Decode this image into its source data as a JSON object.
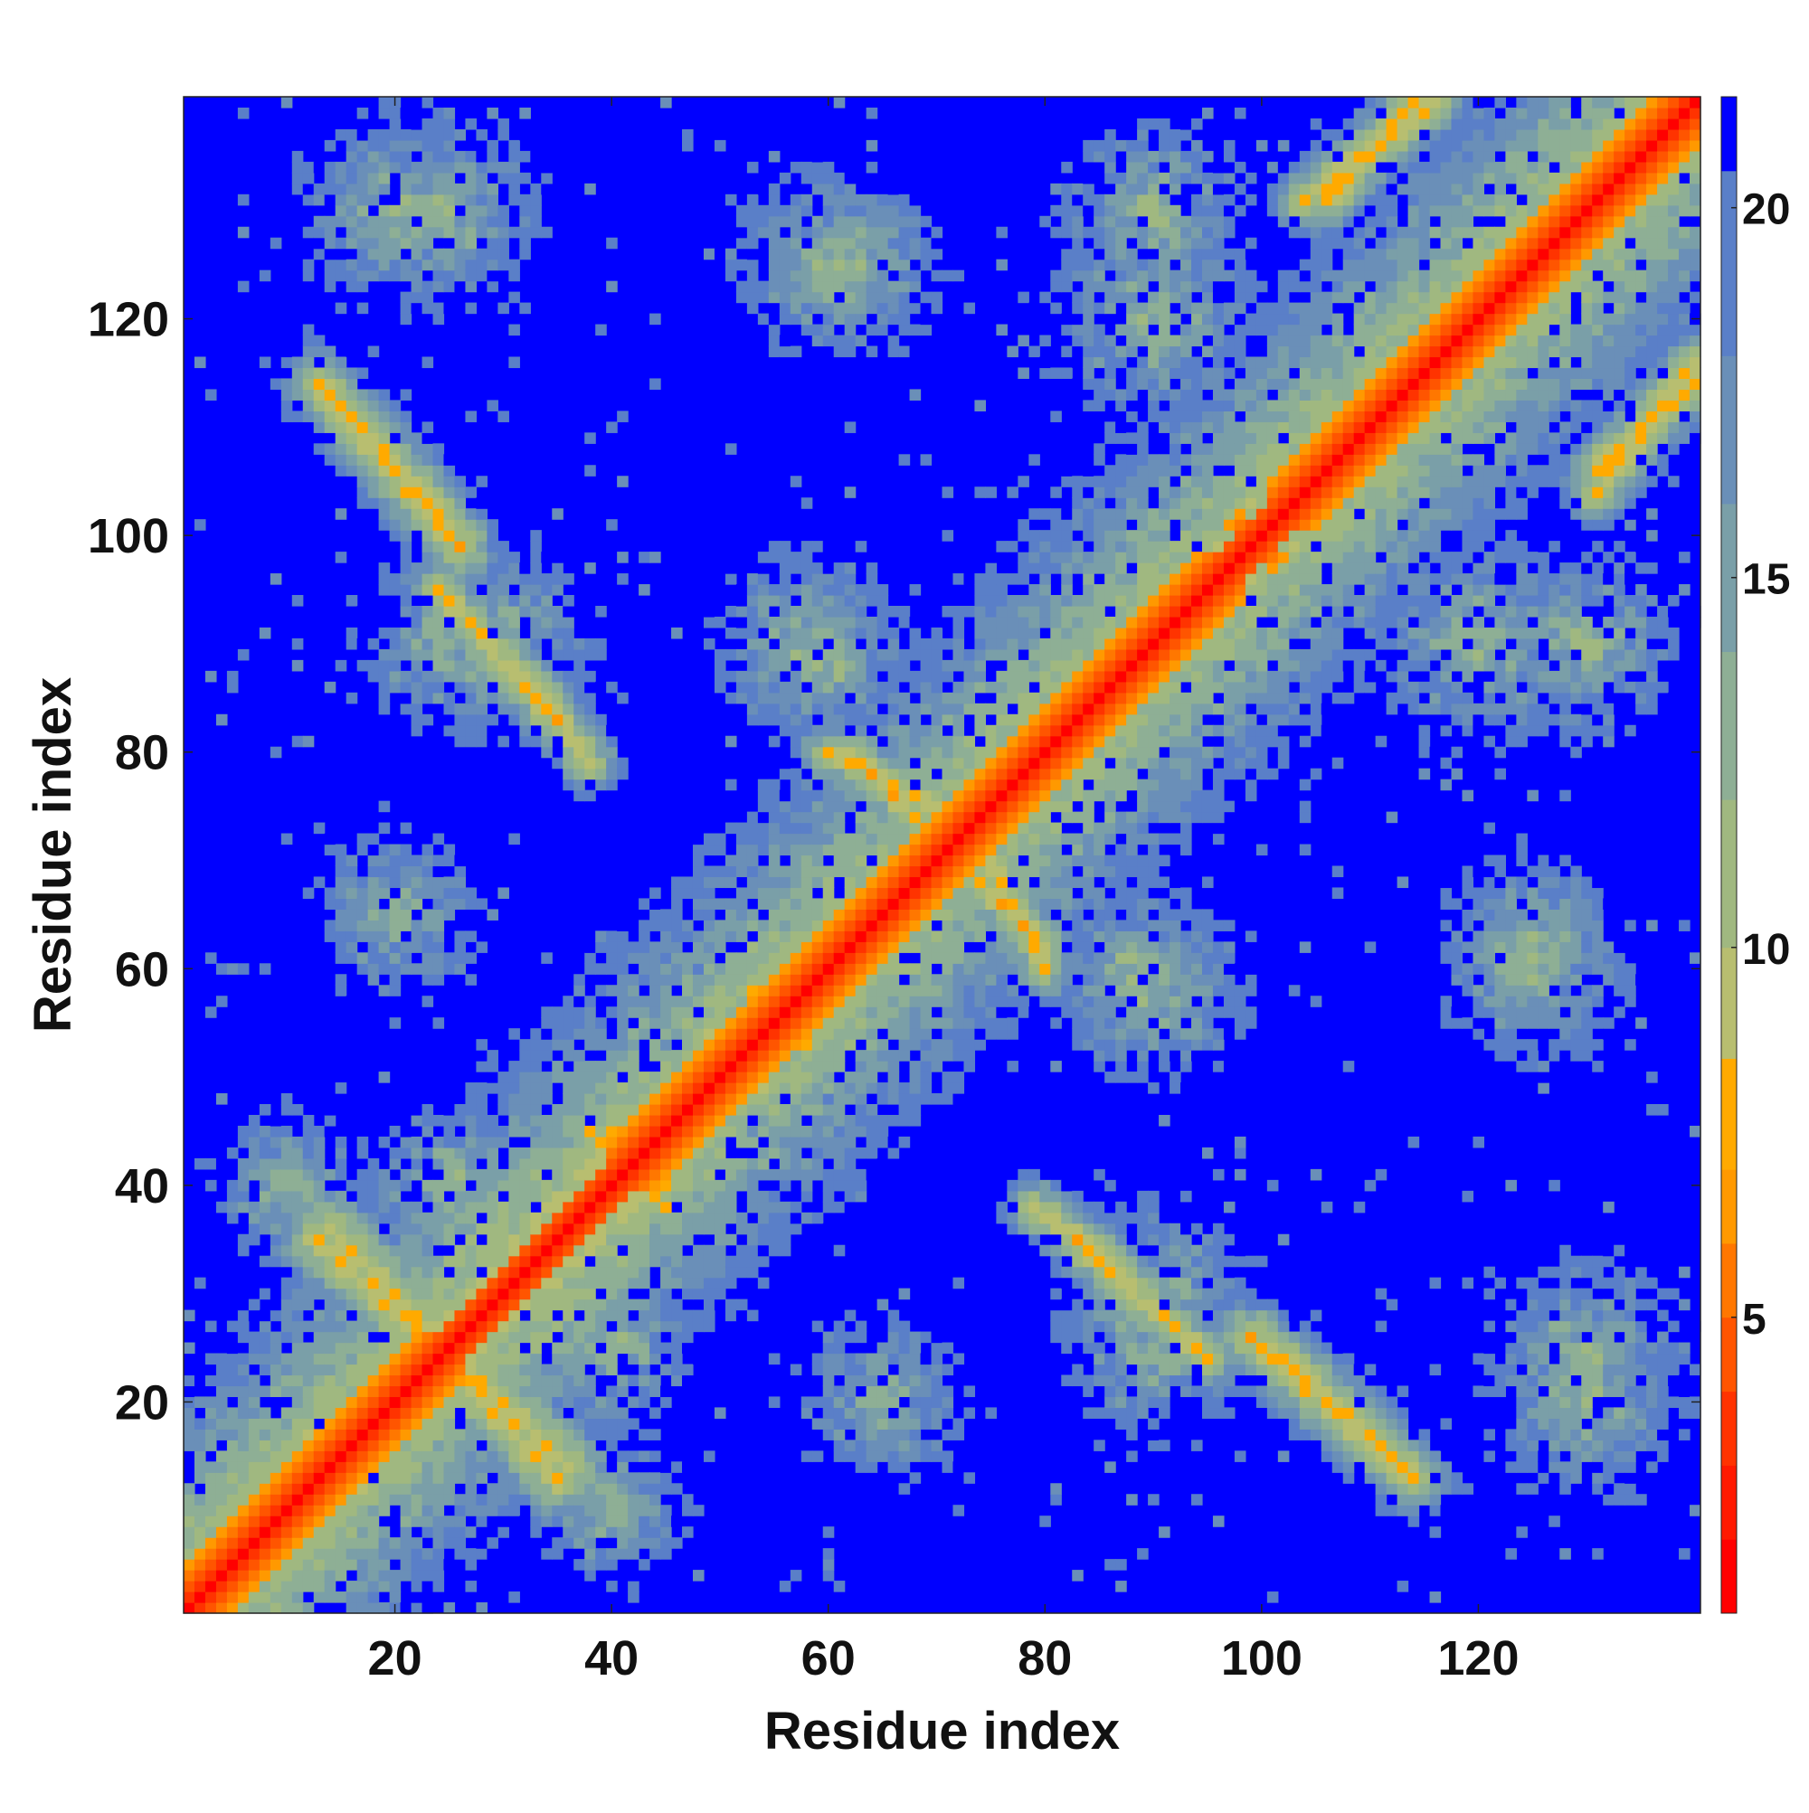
{
  "chart_data": {
    "type": "heatmap",
    "title": "",
    "xlabel": "Residue index",
    "ylabel": "Residue index",
    "xlim": [
      1,
      140
    ],
    "ylim": [
      1,
      140
    ],
    "x_ticks": [
      20,
      40,
      60,
      80,
      100,
      120
    ],
    "y_ticks": [
      20,
      40,
      60,
      80,
      100,
      120
    ],
    "colorbar": {
      "ticks": [
        5,
        10,
        15,
        20
      ],
      "range": [
        1,
        21.5
      ],
      "levels": [
        {
          "upto": 2.0,
          "color": "#ff0000"
        },
        {
          "upto": 3.0,
          "color": "#ff1a00"
        },
        {
          "upto": 4.0,
          "color": "#ff3300"
        },
        {
          "upto": 5.0,
          "color": "#ff5500"
        },
        {
          "upto": 6.0,
          "color": "#ff7700"
        },
        {
          "upto": 7.0,
          "color": "#ff9900"
        },
        {
          "upto": 8.5,
          "color": "#ffaa00"
        },
        {
          "upto": 10.0,
          "color": "#b8be70"
        },
        {
          "upto": 12.0,
          "color": "#a0b880"
        },
        {
          "upto": 14.0,
          "color": "#8eaf95"
        },
        {
          "upto": 16.0,
          "color": "#7a9fa8"
        },
        {
          "upto": 18.0,
          "color": "#6a8fb8"
        },
        {
          "upto": 20.5,
          "color": "#5a7fc8"
        },
        {
          "upto": 21.5,
          "color": "#0000ff"
        }
      ],
      "background_color": "#0000ff"
    },
    "n_residues": 140,
    "cutoff": 21,
    "structure": {
      "helix_segments": [
        [
          1,
          26
        ],
        [
          40,
          98
        ],
        [
          101,
          140
        ]
      ],
      "contact_lines": [
        {
          "from": [
            14,
            36
          ],
          "to": [
            35,
            13
          ],
          "width": 1.2
        },
        {
          "from": [
            102,
            24
          ],
          "to": [
            114,
            13
          ],
          "width": 1.0
        },
        {
          "from": [
            14,
            113
          ],
          "to": [
            26,
            99
          ],
          "width": 1.0
        },
        {
          "from": [
            33,
            86
          ],
          "to": [
            38,
            79
          ],
          "width": 0.8
        },
        {
          "from": [
            83,
            35
          ],
          "to": [
            95,
            24
          ],
          "width": 0.9
        },
        {
          "from": [
            75,
            70
          ],
          "to": [
            80,
            60
          ],
          "width": 0.8
        },
        {
          "from": [
            62,
            80
          ],
          "to": [
            68,
            74
          ],
          "width": 0.8
        },
        {
          "from": [
            131,
            104
          ],
          "to": [
            140,
            116
          ],
          "width": 0.9
        },
        {
          "from": [
            106,
            131
          ],
          "to": [
            114,
            140
          ],
          "width": 0.9
        },
        {
          "from": [
            40,
            45
          ],
          "to": [
            45,
            38
          ],
          "width": 0.8
        },
        {
          "from": [
            53,
            57
          ],
          "to": [
            58,
            53
          ],
          "width": 0.7
        }
      ],
      "cloud_centers": [
        {
          "x": 20,
          "y": 130,
          "r": 9
        },
        {
          "x": 30,
          "y": 90,
          "r": 9
        },
        {
          "x": 60,
          "y": 125,
          "r": 9
        },
        {
          "x": 90,
          "y": 120,
          "r": 10
        },
        {
          "x": 130,
          "y": 90,
          "r": 9
        },
        {
          "x": 125,
          "y": 62,
          "r": 9
        },
        {
          "x": 90,
          "y": 58,
          "r": 9
        },
        {
          "x": 60,
          "y": 88,
          "r": 8
        },
        {
          "x": 40,
          "y": 25,
          "r": 8
        },
        {
          "x": 65,
          "y": 20,
          "r": 8
        },
        {
          "x": 90,
          "y": 25,
          "r": 9
        },
        {
          "x": 130,
          "y": 25,
          "r": 9
        },
        {
          "x": 45,
          "y": 45,
          "r": 8
        },
        {
          "x": 10,
          "y": 40,
          "r": 7
        },
        {
          "x": 100,
          "y": 100,
          "r": 8
        }
      ]
    }
  }
}
